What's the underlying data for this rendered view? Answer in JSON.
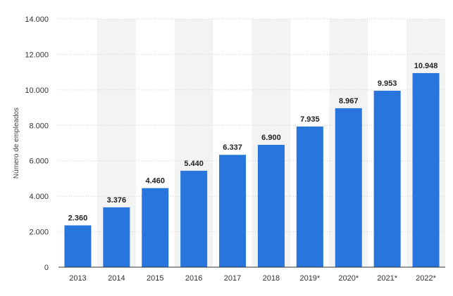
{
  "chart_data": {
    "type": "bar",
    "categories": [
      "2013",
      "2014",
      "2015",
      "2016",
      "2017",
      "2018",
      "2019*",
      "2020*",
      "2021*",
      "2022*"
    ],
    "values": [
      2360,
      3376,
      4460,
      5440,
      6337,
      6900,
      7935,
      8967,
      9953,
      10948
    ],
    "value_labels": [
      "2.360",
      "3.376",
      "4.460",
      "5.440",
      "6.337",
      "6.900",
      "7.935",
      "8.967",
      "9.953",
      "10.948"
    ],
    "title": "",
    "xlabel": "",
    "ylabel": "Número de empleados",
    "ylim": [
      0,
      14000
    ],
    "yticks": [
      0,
      2000,
      4000,
      6000,
      8000,
      10000,
      12000,
      14000
    ],
    "ytick_labels": [
      "0",
      "2.000",
      "4.000",
      "6.000",
      "8.000",
      "10.000",
      "12.000",
      "14.000"
    ],
    "grid": true,
    "bar_color": "#2876dd",
    "band_color": "#f3f3f3"
  }
}
